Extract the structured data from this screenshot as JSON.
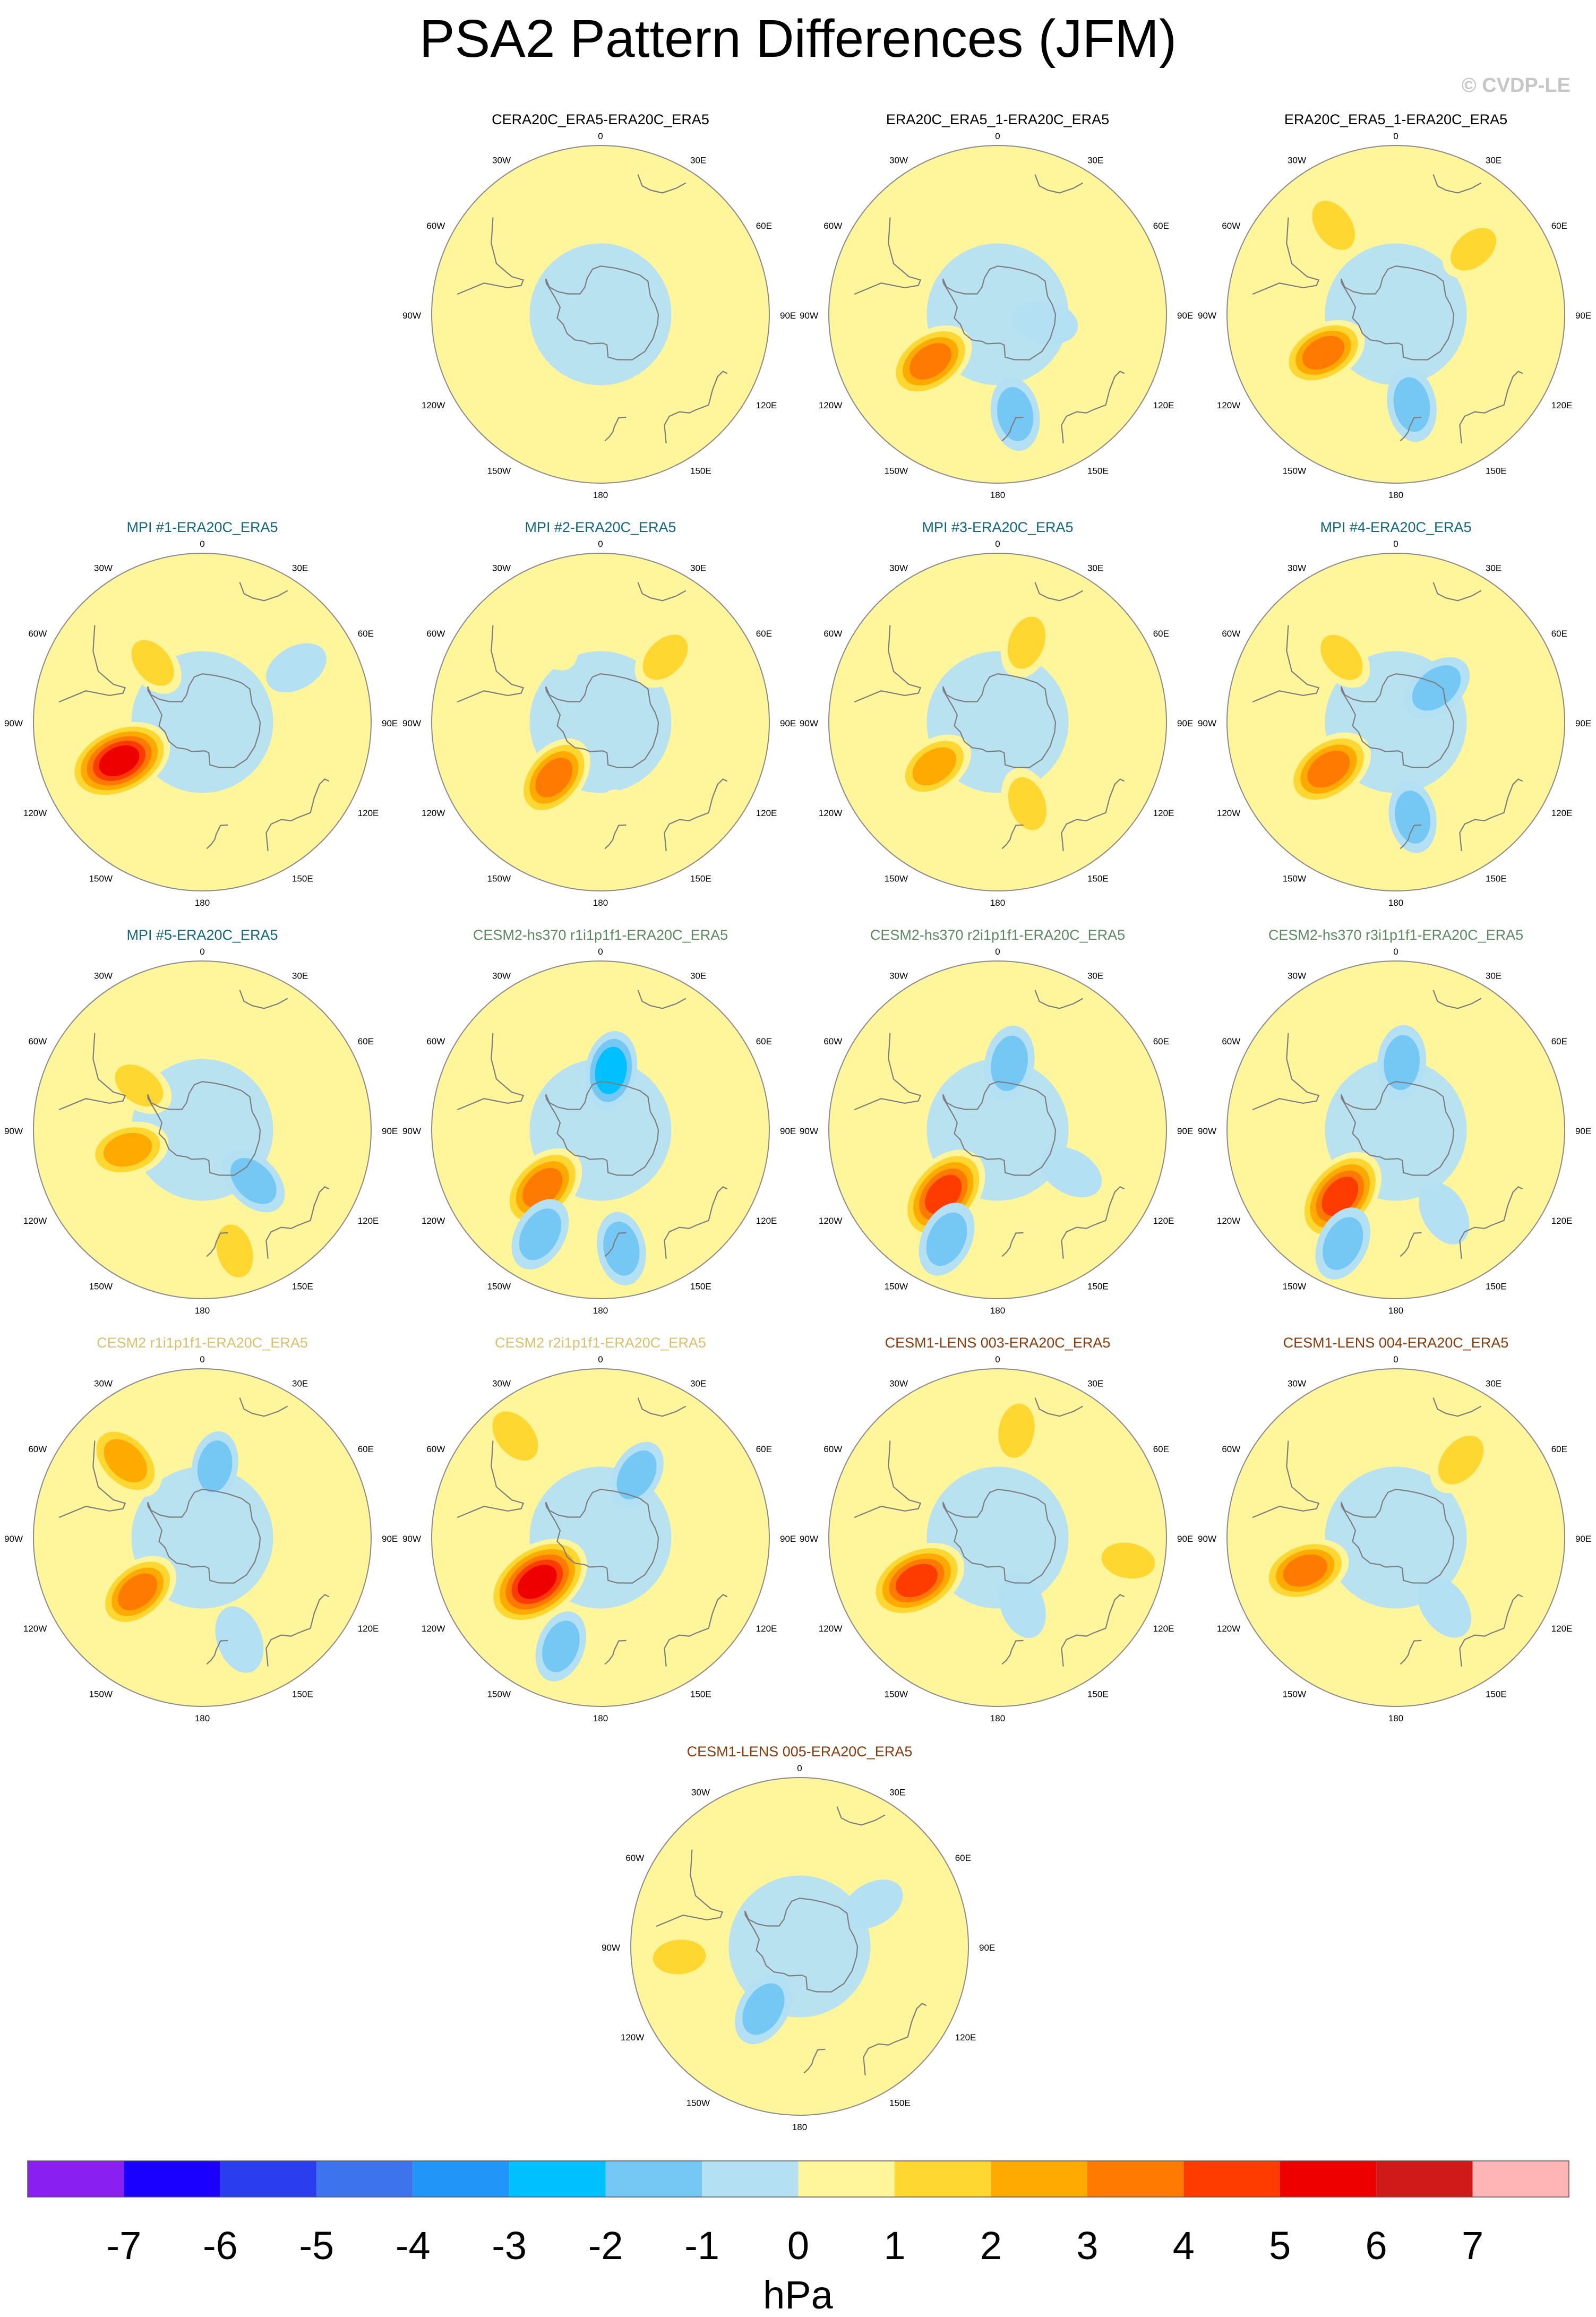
{
  "title": "PSA2 Pattern Differences (JFM)",
  "copyright": "© CVDP-LE",
  "colorbar": {
    "unit": "hPa",
    "tick_labels": [
      "-7",
      "-6",
      "-5",
      "-4",
      "-3",
      "-2",
      "-1",
      "0",
      "1",
      "2",
      "3",
      "4",
      "5",
      "6",
      "7"
    ],
    "colors": [
      "#8a1ff2",
      "#1a00ff",
      "#2a3ef0",
      "#3d74ee",
      "#2196f8",
      "#00c0ff",
      "#76c8f4",
      "#b4e0f4",
      "#fff59a",
      "#ffd730",
      "#ffaa00",
      "#ff7a00",
      "#ff3c00",
      "#ee0000",
      "#d01a1a",
      "#ffb5b5"
    ]
  },
  "map_labels": {
    "north": "0",
    "south": "180",
    "left": [
      "30W",
      "60W",
      "90W",
      "120W",
      "150W"
    ],
    "right": [
      "30E",
      "60E",
      "90E",
      "120E",
      "150E"
    ]
  },
  "panels": [
    {
      "title": "CERA20C_ERA5-ERA20C_ERA5",
      "title_color": "#000000",
      "features": [
        {
          "lat": -38,
          "lon": 0,
          "value": 0.5
        },
        {
          "lat": -40,
          "lon": 75,
          "value": 0.4
        },
        {
          "lat": -30,
          "lon": -95,
          "value": 0.6
        }
      ]
    },
    {
      "title": "ERA20C_ERA5_1-ERA20C_ERA5",
      "title_color": "#000000",
      "features": [
        {
          "lat": -56,
          "lon": -125,
          "value": 3.6
        },
        {
          "lat": -48,
          "lon": 170,
          "value": -1.6
        },
        {
          "lat": -70,
          "lon": 100,
          "value": -0.7
        }
      ]
    },
    {
      "title": "ERA20C_ERA5_1-ERA20C_ERA5",
      "title_color": "#000000",
      "features": [
        {
          "lat": -56,
          "lon": -118,
          "value": 3.2
        },
        {
          "lat": -45,
          "lon": -35,
          "value": 1.6
        },
        {
          "lat": -48,
          "lon": 50,
          "value": 1.2
        },
        {
          "lat": -52,
          "lon": 170,
          "value": -1.7
        }
      ]
    },
    {
      "title": "MPI #1-ERA20C_ERA5",
      "title_color": "#0e6680",
      "features": [
        {
          "lat": -52,
          "lon": -115,
          "value": 5.3
        },
        {
          "lat": -58,
          "lon": -40,
          "value": 1.2
        },
        {
          "lat": -45,
          "lon": 60,
          "value": -0.6
        }
      ]
    },
    {
      "title": "MPI #2-ERA20C_ERA5",
      "title_color": "#0e6680",
      "features": [
        {
          "lat": -60,
          "lon": -140,
          "value": 3.3
        },
        {
          "lat": -52,
          "lon": 45,
          "value": 1.4
        },
        {
          "lat": -50,
          "lon": -30,
          "value": 1.0
        },
        {
          "lat": -48,
          "lon": 170,
          "value": 0.6
        }
      ]
    },
    {
      "title": "MPI #3-ERA20C_ERA5",
      "title_color": "#0e6680",
      "features": [
        {
          "lat": -58,
          "lon": -125,
          "value": 2.4
        },
        {
          "lat": -54,
          "lon": 160,
          "value": 1.6
        },
        {
          "lat": -55,
          "lon": 20,
          "value": 1.5
        }
      ]
    },
    {
      "title": "MPI #4-ERA20C_ERA5",
      "title_color": "#0e6680",
      "features": [
        {
          "lat": -56,
          "lon": -125,
          "value": 3.8
        },
        {
          "lat": -68,
          "lon": 50,
          "value": -1.8
        },
        {
          "lat": -50,
          "lon": 170,
          "value": -1.4
        },
        {
          "lat": -55,
          "lon": -40,
          "value": 1.1
        }
      ]
    },
    {
      "title": "MPI #5-ERA20C_ERA5",
      "title_color": "#0e6680",
      "features": [
        {
          "lat": -58,
          "lon": -105,
          "value": 2.6
        },
        {
          "lat": -58,
          "lon": -55,
          "value": 1.4
        },
        {
          "lat": -60,
          "lon": 135,
          "value": -1.6
        },
        {
          "lat": -38,
          "lon": 165,
          "value": 1.5
        }
      ]
    },
    {
      "title": "CESM2-hs370 r1i1p1f1-ERA20C_ERA5",
      "title_color": "#5a8a5e",
      "features": [
        {
          "lat": -56,
          "lon": -135,
          "value": 3.8
        },
        {
          "lat": -65,
          "lon": 10,
          "value": -2.2
        },
        {
          "lat": -40,
          "lon": -150,
          "value": -1.8
        },
        {
          "lat": -40,
          "lon": 170,
          "value": -1.6
        }
      ]
    },
    {
      "title": "CESM2-hs370 r2i1p1f1-ERA20C_ERA5",
      "title_color": "#5a8a5e",
      "features": [
        {
          "lat": -55,
          "lon": -140,
          "value": 4.8
        },
        {
          "lat": -62,
          "lon": 10,
          "value": -1.8
        },
        {
          "lat": -40,
          "lon": -155,
          "value": -1.9
        },
        {
          "lat": -55,
          "lon": 120,
          "value": -0.8
        }
      ]
    },
    {
      "title": "CESM2-hs370 r3i1p1f1-ERA20C_ERA5",
      "title_color": "#5a8a5e",
      "features": [
        {
          "lat": -54,
          "lon": -140,
          "value": 4.7
        },
        {
          "lat": -62,
          "lon": 5,
          "value": -1.7
        },
        {
          "lat": -38,
          "lon": -155,
          "value": -1.8
        },
        {
          "lat": -50,
          "lon": 150,
          "value": -0.8
        }
      ]
    },
    {
      "title": "CESM2 r1i1p1f1-ERA20C_ERA5",
      "title_color": "#d8c16a",
      "features": [
        {
          "lat": -55,
          "lon": -130,
          "value": 3.2
        },
        {
          "lat": -45,
          "lon": -45,
          "value": 3.0
        },
        {
          "lat": -60,
          "lon": 10,
          "value": -1.2
        },
        {
          "lat": -45,
          "lon": 160,
          "value": -1.0
        }
      ]
    },
    {
      "title": "CESM2 r2i1p1f1-ERA20C_ERA5",
      "title_color": "#d8c16a",
      "features": [
        {
          "lat": -58,
          "lon": -125,
          "value": 5.7
        },
        {
          "lat": -35,
          "lon": -40,
          "value": 1.9
        },
        {
          "lat": -60,
          "lon": 30,
          "value": -1.3
        },
        {
          "lat": -42,
          "lon": -160,
          "value": -1.4
        }
      ]
    },
    {
      "title": "CESM1-LENS 003-ERA20C_ERA5",
      "title_color": "#8b3a0a",
      "features": [
        {
          "lat": -52,
          "lon": -118,
          "value": 4.7
        },
        {
          "lat": -45,
          "lon": 10,
          "value": 1.6
        },
        {
          "lat": -35,
          "lon": 100,
          "value": 1.5
        },
        {
          "lat": -60,
          "lon": 160,
          "value": -0.8
        }
      ]
    },
    {
      "title": "CESM1-LENS 004-ERA20C_ERA5",
      "title_color": "#8b3a0a",
      "features": [
        {
          "lat": -50,
          "lon": -110,
          "value": 3.4
        },
        {
          "lat": -48,
          "lon": 40,
          "value": 1.8
        },
        {
          "lat": -55,
          "lon": 145,
          "value": -1.0
        }
      ]
    },
    {
      "title": "CESM1-LENS 005-ERA20C_ERA5",
      "title_color": "#8b3a0a",
      "features": [
        {
          "lat": -60,
          "lon": -150,
          "value": -1.8
        },
        {
          "lat": -40,
          "lon": -95,
          "value": 1.3
        },
        {
          "lat": -55,
          "lon": 60,
          "value": -0.6
        }
      ]
    }
  ]
}
